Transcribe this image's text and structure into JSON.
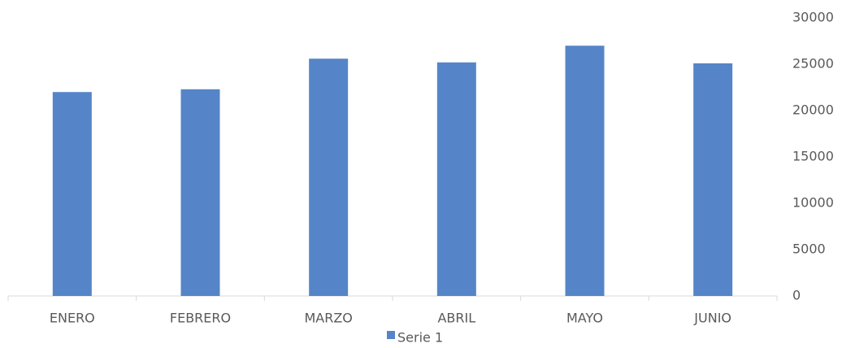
{
  "chart_data": {
    "type": "bar",
    "categories": [
      "ENERO",
      "FEBRERO",
      "MARZO",
      "ABRIL",
      "MAYO",
      "JUNIO"
    ],
    "series": [
      {
        "name": "Serie 1",
        "color": "#5585c8",
        "values": [
          22000,
          22300,
          25600,
          25200,
          27000,
          25100
        ]
      }
    ],
    "ylim": [
      0,
      30000
    ],
    "yticks": [
      0,
      5000,
      10000,
      15000,
      20000,
      25000,
      30000
    ],
    "y_axis_side": "right",
    "grid": false,
    "legend": "bottom"
  }
}
